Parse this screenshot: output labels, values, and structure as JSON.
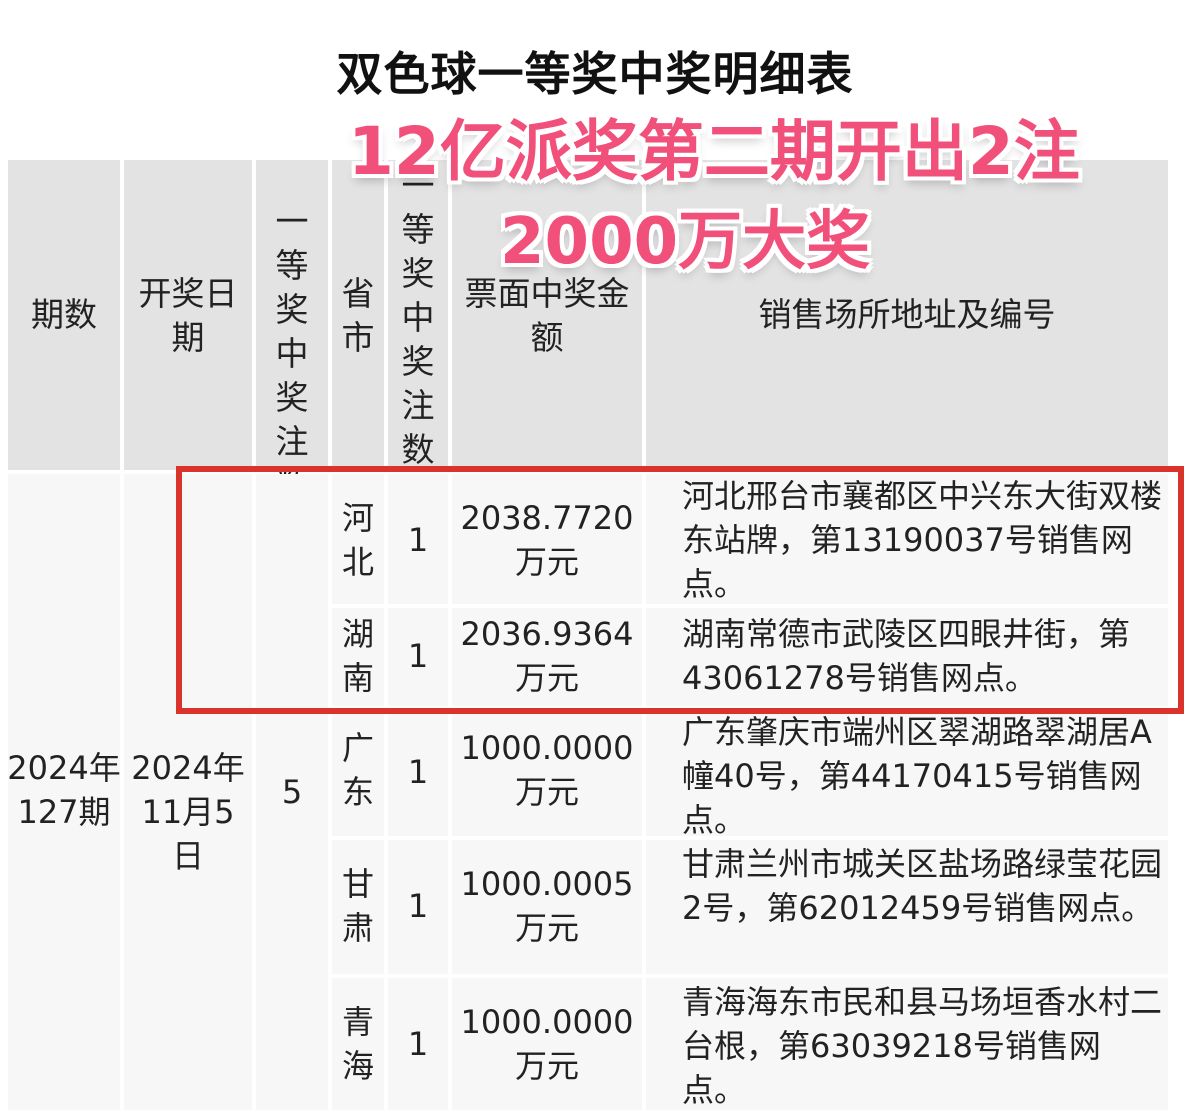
{
  "title": "双色球一等奖中奖明细表",
  "overlay": {
    "line1": "12亿派奖第二期开出2注",
    "line2": "2000万大奖",
    "color": "#f0507a"
  },
  "highlight_color": "#d9332b",
  "headers": {
    "issue": "期数",
    "date": "开奖日期",
    "total": "一等奖中奖注数合计",
    "province": "省市",
    "count": "一等奖中奖注数",
    "amount": "票面中奖金额",
    "address": "销售场所地址及编号"
  },
  "group": {
    "issue": "2024年127期",
    "date": "2024年11月5日",
    "total": "5"
  },
  "rows": [
    {
      "province": "河北",
      "count": "1",
      "amount": "2038.7720万元",
      "address": "河北邢台市襄都区中兴东大街双楼东站牌，第13190037号销售网点。"
    },
    {
      "province": "湖南",
      "count": "1",
      "amount": "2036.9364万元",
      "address": "湖南常德市武陵区四眼井街，第43061278号销售网点。"
    },
    {
      "province": "广东",
      "count": "1",
      "amount": "1000.0000万元",
      "address": "广东肇庆市端州区翠湖路翠湖居A幢40号，第44170415号销售网点。"
    },
    {
      "province": "甘肃",
      "count": "1",
      "amount": "1000.0005万元",
      "address": "甘肃兰州市城关区盐场路绿莹花园2号，第62012459号销售网点。"
    },
    {
      "province": "青海",
      "count": "1",
      "amount": "1000.0000万元",
      "address": "青海海东市民和县马场垣香水村二台根，第63039218号销售网点。"
    }
  ]
}
